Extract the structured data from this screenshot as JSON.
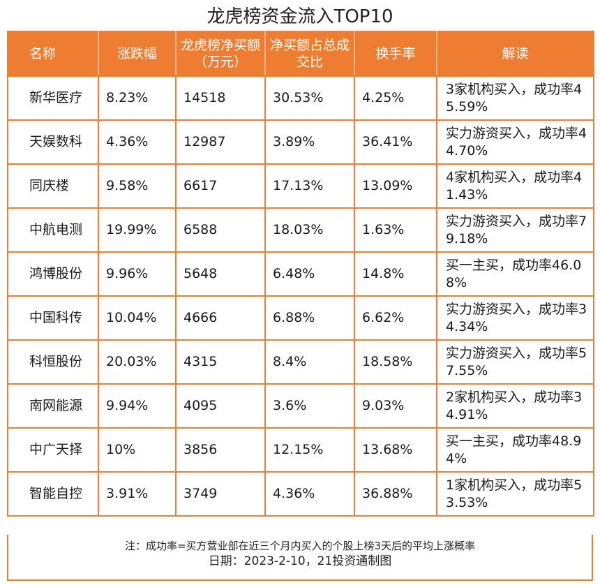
{
  "title": "龙虎榜资金流入TOP10",
  "columns": [
    "名称",
    "涨跌幅",
    "龙虎榜净买额（万元）",
    "净买额占总成交比",
    "换手率",
    "解读"
  ],
  "rows": [
    [
      "新华医疗",
      "8.23%",
      "14518",
      "30.53%",
      "4.25%",
      "3家机构买入，成功率45.59%"
    ],
    [
      "天娱数科",
      "4.36%",
      "12987",
      "3.89%",
      "36.41%",
      "实力游资买入，成功率44.70%"
    ],
    [
      "同庆楼",
      "9.58%",
      "6617",
      "17.13%",
      "13.09%",
      "4家机构买入，成功率41.43%"
    ],
    [
      "中航电测",
      "19.99%",
      "6588",
      "18.03%",
      "1.63%",
      "实力游资买入，成功率79.18%"
    ],
    [
      "鸿博股份",
      "9.96%",
      "5648",
      "6.48%",
      "14.8%",
      "买一主买，成功率46.08%"
    ],
    [
      "中国科传",
      "10.04%",
      "4666",
      "6.88%",
      "6.62%",
      "实力游资买入，成功率34.34%"
    ],
    [
      "科恒股份",
      "20.03%",
      "4315",
      "8.4%",
      "18.58%",
      "实力游资买入，成功率57.55%"
    ],
    [
      "南网能源",
      "9.94%",
      "4095",
      "3.6%",
      "9.03%",
      "2家机构买入，成功率34.91%"
    ],
    [
      "中广天择",
      "10%",
      "3856",
      "12.15%",
      "13.68%",
      "买一主买，成功率48.94%"
    ],
    [
      "智能自控",
      "3.91%",
      "3749",
      "4.36%",
      "36.88%",
      "1家机构买入，成功率53.53%"
    ]
  ],
  "note": "注：成功率=买方营业部在近三个月内买入的个股上榜3天后的平均上涨概率",
  "date_source": "日期：2023-2-10，21投资通制图",
  "colors": {
    "accent": "#ef7d31",
    "header_text": "#ffffff",
    "body_text": "#1a1a1a"
  }
}
